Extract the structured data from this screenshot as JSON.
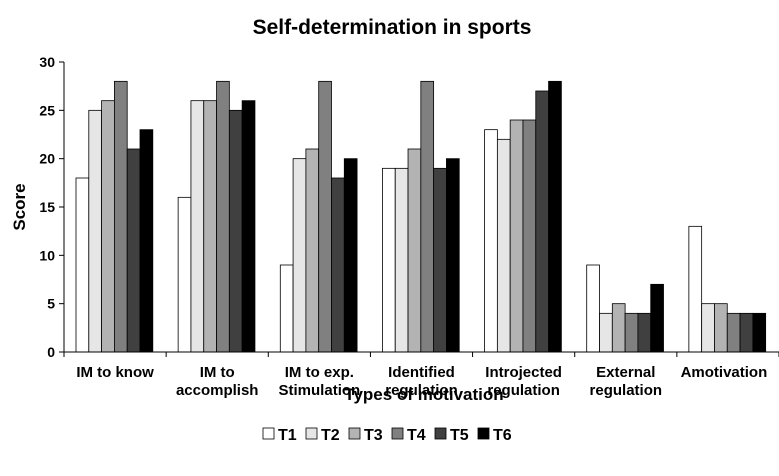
{
  "chart_data": {
    "type": "bar",
    "title": "Self-determination in sports",
    "xlabel": "Types of motivation",
    "ylabel": "Score",
    "ylim": [
      0,
      30
    ],
    "yticks": [
      0,
      5,
      10,
      15,
      20,
      25,
      30
    ],
    "grid": false,
    "legend_position": "bottom",
    "categories": [
      [
        "IM to know"
      ],
      [
        "IM to",
        "accomplish"
      ],
      [
        "IM to exp.",
        "Stimulation"
      ],
      [
        "Identified",
        "regulation"
      ],
      [
        "Introjected",
        "regulation"
      ],
      [
        "External",
        "regulation"
      ],
      [
        "Amotivation"
      ]
    ],
    "series": [
      {
        "name": "T1",
        "color": "#ffffff",
        "values": [
          18,
          16,
          9,
          19,
          23,
          9,
          13
        ]
      },
      {
        "name": "T2",
        "color": "#e6e6e6",
        "values": [
          25,
          26,
          20,
          19,
          22,
          4,
          5
        ]
      },
      {
        "name": "T3",
        "color": "#b3b3b3",
        "values": [
          26,
          26,
          21,
          21,
          24,
          5,
          5
        ]
      },
      {
        "name": "T4",
        "color": "#808080",
        "values": [
          28,
          28,
          28,
          28,
          24,
          4,
          4
        ]
      },
      {
        "name": "T5",
        "color": "#404040",
        "values": [
          21,
          25,
          18,
          19,
          27,
          4,
          4
        ]
      },
      {
        "name": "T6",
        "color": "#000000",
        "values": [
          23,
          26,
          20,
          20,
          28,
          7,
          4
        ]
      }
    ]
  }
}
